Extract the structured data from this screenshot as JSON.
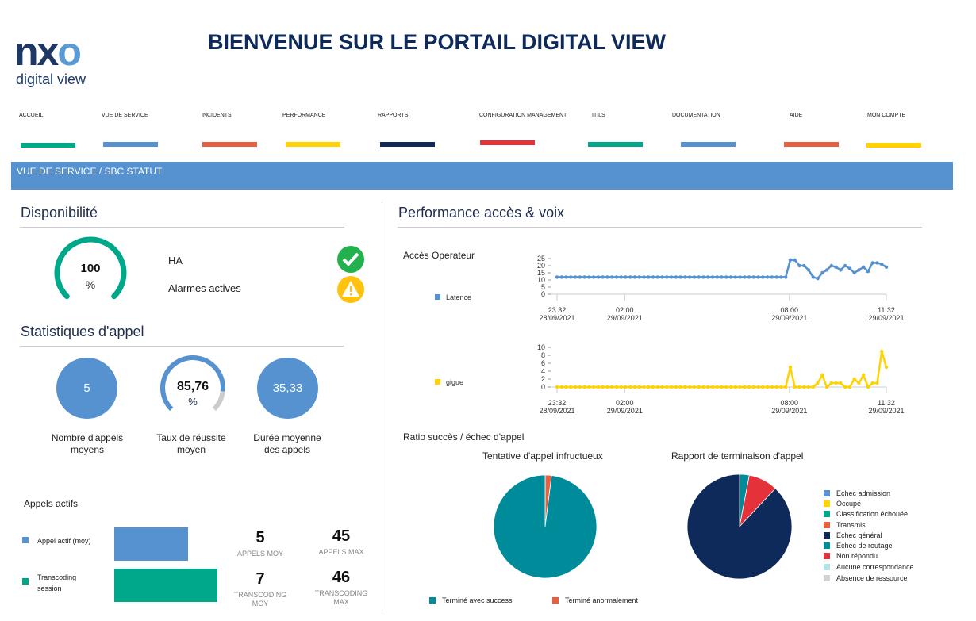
{
  "header": {
    "logo_main": "nxo",
    "logo_sub": "digital view",
    "title": "BIENVENUE SUR LE PORTAIL DIGITAL VIEW"
  },
  "nav": [
    {
      "label": "ACCUEIL",
      "color": "#00a88a"
    },
    {
      "label": "VUE DE SERVICE",
      "color": "#5592cf"
    },
    {
      "label": "INCIDENTS",
      "color": "#e95f3f"
    },
    {
      "label": "PERFORMANCE",
      "color": "#ffd200"
    },
    {
      "label": "RAPPORTS",
      "color": "#0e2a5a"
    },
    {
      "label": "CONFIGURATION MANAGEMENT",
      "color": "#e5323a"
    },
    {
      "label": "ITILS",
      "color": "#00a88a"
    },
    {
      "label": "DOCUMENTATION",
      "color": "#5592cf"
    },
    {
      "label": "AIDE",
      "color": "#e95f3f"
    },
    {
      "label": "MON COMPTE",
      "color": "#ffd200"
    }
  ],
  "breadcrumb": "VUE DE SERVICE / SBC STATUT",
  "availability": {
    "title": "Disponibilité",
    "value": "100",
    "unit": "%",
    "percent": 100,
    "ha_label": "HA",
    "ha_status": "ok",
    "alarms_label": "Alarmes actives",
    "alarms_status": "warning"
  },
  "call_stats": {
    "title": "Statistiques d'appel",
    "avg_calls": {
      "value": "5",
      "label1": "Nombre d'appels",
      "label2": "moyens"
    },
    "success_rate": {
      "value": "85,76",
      "unit": "%",
      "percent": 85.76,
      "label1": "Taux de réussite",
      "label2": "moyen"
    },
    "avg_duration": {
      "value": "35,33",
      "label1": "Durée moyenne",
      "label2": "des appels"
    }
  },
  "active_calls": {
    "title": "Appels actifs",
    "rows": [
      {
        "legend": "Appel actif (moy)",
        "color": "#5592cf",
        "bar_value": 5,
        "moy": "5",
        "moy_label": "APPELS MOY",
        "max": "45",
        "max_label": "APPELS MAX"
      },
      {
        "legend": "Transcoding session",
        "color": "#00a88a",
        "bar_value": 7,
        "moy": "7",
        "moy_label": "TRANSCODING MOY",
        "max": "46",
        "max_label": "TRANSCODING MAX"
      }
    ]
  },
  "performance": {
    "title": "Performance accès & voix",
    "subtitle": "Accès Operateur",
    "ratio_title": "Ratio succès / échec d'appel"
  },
  "chart_data": [
    {
      "type": "line",
      "name": "Latence",
      "color": "#5592cf",
      "ylim": [
        0,
        25
      ],
      "yticks": [
        0,
        5,
        10,
        15,
        20,
        25
      ],
      "x_start": "23:32 28/09/2021",
      "x_step_minutes": 10,
      "xticks": [
        {
          "time": "23:32",
          "date": "28/09/2021",
          "minutes": 0
        },
        {
          "time": "02:00",
          "date": "29/09/2021",
          "minutes": 148
        },
        {
          "time": "08:00",
          "date": "29/09/2021",
          "minutes": 508
        },
        {
          "time": "11:32",
          "date": "29/09/2021",
          "minutes": 720
        }
      ],
      "values": [
        12,
        12,
        12,
        12,
        12,
        12,
        12,
        12,
        12,
        12,
        12,
        12,
        12,
        12,
        12,
        12,
        12,
        12,
        12,
        12,
        12,
        12,
        12,
        12,
        12,
        12,
        12,
        12,
        12,
        12,
        12,
        12,
        12,
        12,
        12,
        12,
        12,
        12,
        12,
        12,
        12,
        12,
        12,
        12,
        12,
        12,
        12,
        12,
        12,
        12,
        12,
        24,
        24,
        20,
        20,
        17,
        12,
        11,
        15,
        17,
        20,
        19,
        17,
        20,
        18,
        15,
        17,
        19,
        16,
        22,
        22,
        21,
        19
      ]
    },
    {
      "type": "line",
      "name": "gigue",
      "color": "#ffd200",
      "ylim": [
        0,
        10
      ],
      "yticks": [
        0,
        2,
        4,
        6,
        8,
        10
      ],
      "x_start": "23:32 28/09/2021",
      "x_step_minutes": 10,
      "xticks": [
        {
          "time": "23:32",
          "date": "28/09/2021",
          "minutes": 0
        },
        {
          "time": "02:00",
          "date": "29/09/2021",
          "minutes": 148
        },
        {
          "time": "08:00",
          "date": "29/09/2021",
          "minutes": 508
        },
        {
          "time": "11:32",
          "date": "29/09/2021",
          "minutes": 720
        }
      ],
      "values": [
        0,
        0,
        0,
        0,
        0,
        0,
        0,
        0,
        0,
        0,
        0,
        0,
        0,
        0,
        0,
        0,
        0,
        0,
        0,
        0,
        0,
        0,
        0,
        0,
        0,
        0,
        0,
        0,
        0,
        0,
        0,
        0,
        0,
        0,
        0,
        0,
        0,
        0,
        0,
        0,
        0,
        0,
        0,
        0,
        0,
        0,
        0,
        0,
        0,
        0,
        0,
        5,
        0,
        0,
        0,
        0,
        0,
        1,
        3,
        0,
        1,
        1,
        1,
        0,
        0,
        2,
        1,
        3,
        0,
        1,
        1,
        9,
        5
      ]
    },
    {
      "type": "pie",
      "title": "Tentative d'appel infructueux",
      "slices": [
        {
          "name": "Terminé anormalement",
          "value": 2,
          "color": "#e95f3f"
        },
        {
          "name": "Terminé avec success",
          "value": 98,
          "color": "#008b9a"
        }
      ],
      "legend": [
        {
          "name": "Terminé avec success",
          "color": "#008b9a"
        },
        {
          "name": "Terminé anormalement",
          "color": "#e95f3f"
        }
      ]
    },
    {
      "type": "pie",
      "title": "Rapport de terminaison d'appel",
      "slices": [
        {
          "name": "Echec de routage",
          "value": 3,
          "color": "#008b9a"
        },
        {
          "name": "Non répondu",
          "value": 9,
          "color": "#e5323a"
        },
        {
          "name": "Echec général",
          "value": 88,
          "color": "#0e2a5a"
        }
      ],
      "legend": [
        {
          "name": "Echec admission",
          "color": "#5592cf"
        },
        {
          "name": "Occupé",
          "color": "#ffd200"
        },
        {
          "name": "Classification échouée",
          "color": "#00a88a"
        },
        {
          "name": "Transmis",
          "color": "#e95f3f"
        },
        {
          "name": "Echec général",
          "color": "#0e2a5a"
        },
        {
          "name": "Echec de routage",
          "color": "#008b9a"
        },
        {
          "name": "Non répondu",
          "color": "#e5323a"
        },
        {
          "name": "Aucune correspondance",
          "color": "#b4e0e8"
        },
        {
          "name": "Absence de ressource",
          "color": "#d3d3d3"
        }
      ]
    }
  ]
}
